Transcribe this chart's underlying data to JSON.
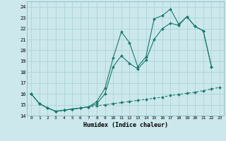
{
  "xlabel": "Humidex (Indice chaleur)",
  "bg_color": "#cce8ec",
  "grid_color": "#aad4d8",
  "line_color": "#1a7a6e",
  "xlim": [
    -0.5,
    23.5
  ],
  "ylim": [
    14,
    24.5
  ],
  "yticks": [
    14,
    15,
    16,
    17,
    18,
    19,
    20,
    21,
    22,
    23,
    24
  ],
  "xticks": [
    0,
    1,
    2,
    3,
    4,
    5,
    6,
    7,
    8,
    9,
    10,
    11,
    12,
    13,
    14,
    15,
    16,
    17,
    18,
    19,
    20,
    21,
    22,
    23
  ],
  "line1_x": [
    0,
    1,
    2,
    3,
    4,
    5,
    6,
    7,
    8,
    9,
    10,
    11,
    12,
    13,
    14,
    15,
    16,
    17,
    18,
    19,
    20,
    21,
    22
  ],
  "line1_y": [
    16.0,
    15.1,
    14.7,
    14.4,
    14.5,
    14.6,
    14.7,
    14.8,
    15.3,
    16.5,
    19.3,
    21.7,
    20.7,
    18.5,
    19.4,
    22.9,
    23.2,
    23.8,
    22.4,
    23.1,
    22.2,
    21.8,
    18.5
  ],
  "line2_x": [
    0,
    1,
    2,
    3,
    4,
    5,
    6,
    7,
    8,
    9,
    10,
    11,
    12,
    13,
    14,
    15,
    16,
    17,
    18,
    19,
    20,
    21,
    22
  ],
  "line2_y": [
    16.0,
    15.1,
    14.7,
    14.4,
    14.5,
    14.6,
    14.7,
    14.8,
    15.1,
    16.0,
    18.5,
    19.5,
    18.8,
    18.3,
    19.1,
    21.0,
    22.0,
    22.5,
    22.3,
    23.1,
    22.2,
    21.8,
    18.5
  ],
  "line3_x": [
    0,
    1,
    2,
    3,
    4,
    5,
    6,
    7,
    8,
    9,
    10,
    11,
    12,
    13,
    14,
    15,
    16,
    17,
    18,
    19,
    20,
    21,
    22,
    23
  ],
  "line3_y": [
    16.0,
    15.1,
    14.7,
    14.4,
    14.5,
    14.6,
    14.7,
    14.8,
    14.9,
    15.0,
    15.1,
    15.2,
    15.3,
    15.4,
    15.5,
    15.6,
    15.7,
    15.85,
    15.95,
    16.05,
    16.15,
    16.3,
    16.45,
    16.6
  ]
}
